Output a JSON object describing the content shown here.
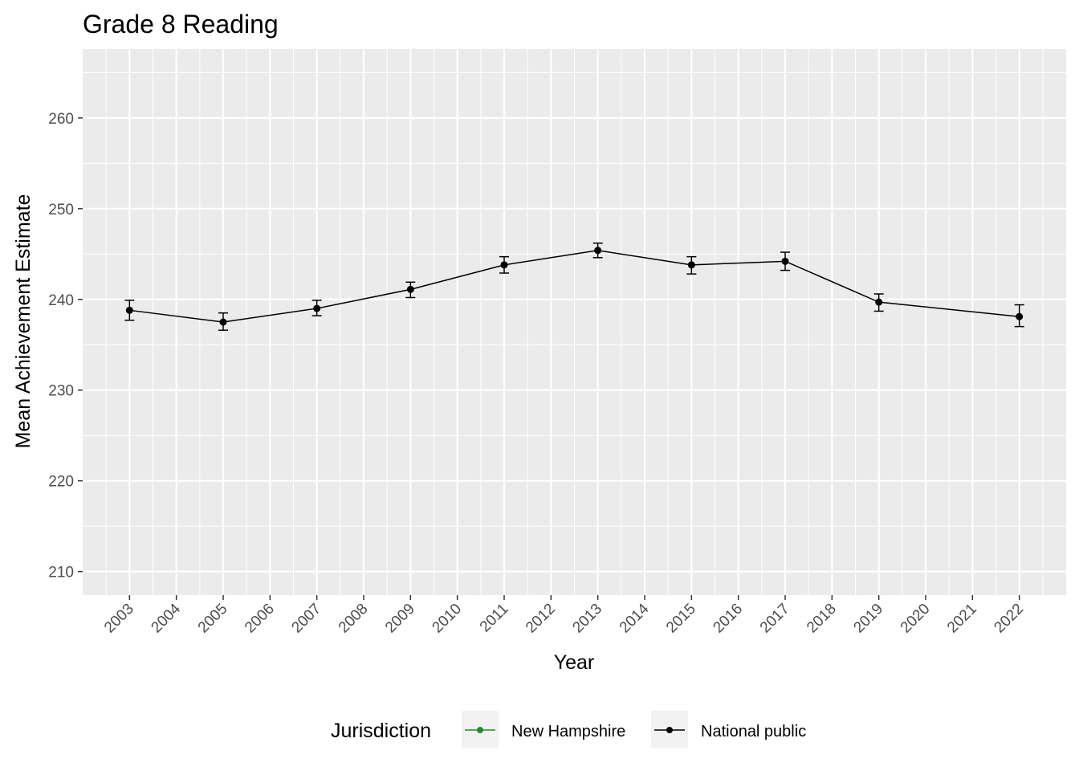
{
  "chart_data": {
    "type": "line",
    "title": "Grade 8 Reading",
    "xlabel": "Year",
    "ylabel": "Mean Achievement Estimate",
    "x_ticks": [
      "2003",
      "2004",
      "2005",
      "2006",
      "2007",
      "2008",
      "2009",
      "2010",
      "2011",
      "2012",
      "2013",
      "2014",
      "2015",
      "2016",
      "2017",
      "2018",
      "2019",
      "2020",
      "2021",
      "2022"
    ],
    "y_ticks": [
      210,
      220,
      230,
      240,
      250,
      260
    ],
    "xlim": [
      2002,
      2023
    ],
    "ylim": [
      207.4,
      267.6
    ],
    "grid": true,
    "legend": {
      "title": "Jurisdiction",
      "position": "bottom",
      "entries": [
        {
          "name": "New Hampshire",
          "color": "#228b22"
        },
        {
          "name": "National public",
          "color": "#000000"
        }
      ]
    },
    "series": [
      {
        "name": "National public",
        "color": "#000000",
        "points": [
          {
            "x": 2003,
            "y": 238.8,
            "lower": 237.7,
            "upper": 239.9
          },
          {
            "x": 2005,
            "y": 237.5,
            "lower": 236.6,
            "upper": 238.5
          },
          {
            "x": 2007,
            "y": 239.0,
            "lower": 238.2,
            "upper": 239.9
          },
          {
            "x": 2009,
            "y": 241.1,
            "lower": 240.2,
            "upper": 241.9
          },
          {
            "x": 2011,
            "y": 243.8,
            "lower": 242.9,
            "upper": 244.7
          },
          {
            "x": 2013,
            "y": 245.4,
            "lower": 244.6,
            "upper": 246.2
          },
          {
            "x": 2015,
            "y": 243.8,
            "lower": 242.8,
            "upper": 244.7
          },
          {
            "x": 2017,
            "y": 244.2,
            "lower": 243.2,
            "upper": 245.2
          },
          {
            "x": 2019,
            "y": 239.7,
            "lower": 238.7,
            "upper": 240.6
          },
          {
            "x": 2022,
            "y": 238.1,
            "lower": 237.0,
            "upper": 239.4
          }
        ]
      }
    ]
  },
  "colors": {
    "panel_background": "#ebebeb",
    "grid_major": "#ffffff",
    "tick_text": "#4d4d4d",
    "legend_key_background": "#f2f2f2"
  }
}
